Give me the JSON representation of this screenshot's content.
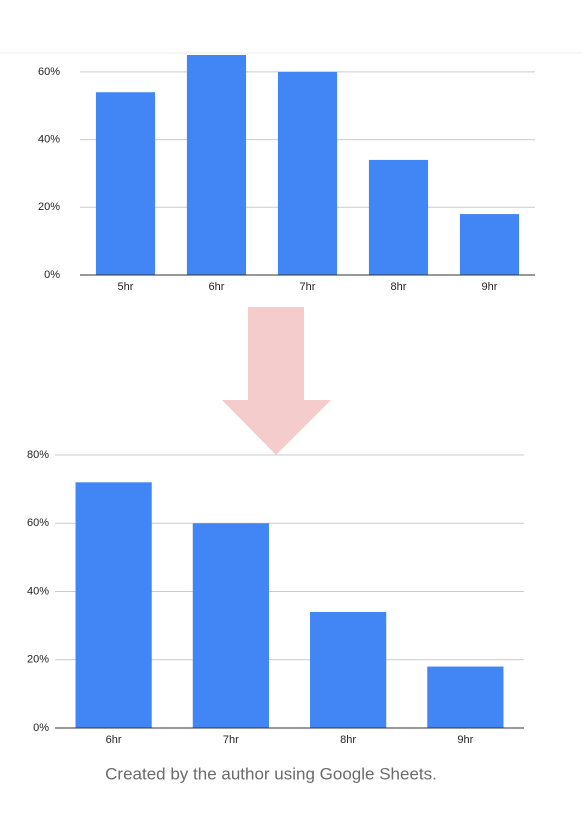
{
  "chart_data": [
    {
      "type": "bar",
      "categories": [
        "5hr",
        "6hr",
        "7hr",
        "8hr",
        "9hr"
      ],
      "values": [
        54,
        65,
        60,
        34,
        18
      ],
      "color": "#4285f4",
      "ylim": [
        0,
        65
      ],
      "yticks": [
        {
          "value": 0,
          "label": "0%"
        },
        {
          "value": 20,
          "label": "20%"
        },
        {
          "value": 40,
          "label": "40%"
        },
        {
          "value": 60,
          "label": "60%"
        }
      ],
      "grid": true
    },
    {
      "type": "bar",
      "categories": [
        "6hr",
        "7hr",
        "8hr",
        "9hr"
      ],
      "values": [
        72,
        60,
        34,
        18
      ],
      "color": "#4285f4",
      "ylim": [
        0,
        80
      ],
      "yticks": [
        {
          "value": 0,
          "label": "0%"
        },
        {
          "value": 20,
          "label": "20%"
        },
        {
          "value": 40,
          "label": "40%"
        },
        {
          "value": 60,
          "label": "60%"
        },
        {
          "value": 80,
          "label": "80%"
        }
      ],
      "grid": true
    }
  ],
  "caption": "Created by the author using Google Sheets."
}
